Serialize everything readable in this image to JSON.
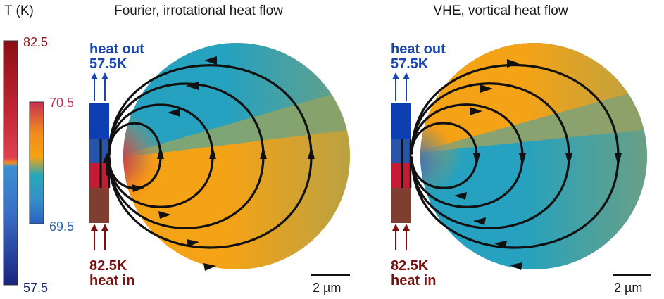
{
  "colorbar": {
    "title": "T (K)",
    "outer_max": "82.5",
    "outer_min": "57.5",
    "inner_max": "70.5",
    "inner_min": "69.5",
    "colors": {
      "outer_max_label": "#8b1a1a",
      "outer_min_label": "#1a2a6c",
      "inner_max_label": "#c03050",
      "inner_min_label": "#2a60b0"
    }
  },
  "panels": [
    {
      "title": "Fourier, irrotational heat flow",
      "heat_out": "heat out",
      "out_temp": "57.5K",
      "in_temp": "82.5K",
      "heat_in": "heat in",
      "scale_label": "2 µm",
      "upper_color": "teal",
      "lower_color": "orange",
      "flow_direction": "counterclockwise-from-bottom"
    },
    {
      "title": "VHE, vortical heat flow",
      "heat_out": "heat out",
      "out_temp": "57.5K",
      "in_temp": "82.5K",
      "heat_in": "heat in",
      "scale_label": "2 µm",
      "upper_color": "orange",
      "lower_color": "teal",
      "flow_direction": "clockwise-from-top"
    }
  ]
}
